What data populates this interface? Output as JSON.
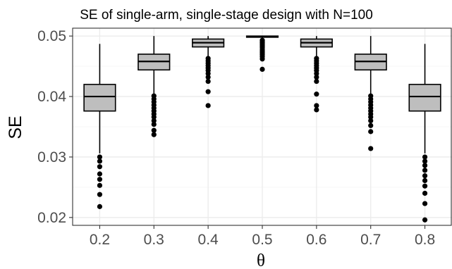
{
  "chart_data": {
    "type": "box",
    "title": "SE of single-arm, single-stage design with N=100",
    "xlabel": "θ",
    "ylabel": "SE",
    "categories": [
      "0.2",
      "0.3",
      "0.4",
      "0.5",
      "0.6",
      "0.7",
      "0.8"
    ],
    "ylim": [
      0.0187,
      0.0513
    ],
    "yticks": [
      0.02,
      0.03,
      0.04,
      0.05
    ],
    "ytick_labels": [
      "0.02",
      "0.03",
      "0.04",
      "0.05"
    ],
    "grid": true,
    "colors": {
      "box_fill": "#bebebe",
      "outline": "#000000",
      "grid_major": "#ebebeb",
      "grid_minor": "#f4f4f4"
    },
    "boxes": [
      {
        "category": "0.2",
        "whisker_low": 0.0306,
        "q1": 0.0376,
        "median": 0.04,
        "q3": 0.042,
        "whisker_high": 0.0487,
        "outliers": [
          0.03,
          0.0293,
          0.0284,
          0.0272,
          0.0263,
          0.0253,
          0.0238,
          0.0218
        ]
      },
      {
        "category": "0.3",
        "whisker_low": 0.0404,
        "q1": 0.0444,
        "median": 0.0458,
        "q3": 0.047,
        "whisker_high": 0.05,
        "outliers": [
          0.0401,
          0.0396,
          0.0391,
          0.0386,
          0.0381,
          0.0376,
          0.0371,
          0.0366,
          0.036,
          0.0354,
          0.0344,
          0.0337
        ]
      },
      {
        "category": "0.4",
        "whisker_low": 0.0466,
        "q1": 0.0482,
        "median": 0.0489,
        "q3": 0.0495,
        "whisker_high": 0.05,
        "outliers": [
          0.0463,
          0.0459,
          0.0455,
          0.0451,
          0.0447,
          0.0443,
          0.0438,
          0.0432,
          0.0425,
          0.0408,
          0.0385
        ]
      },
      {
        "category": "0.5",
        "whisker_low": 0.0495,
        "q1": 0.0498,
        "median": 0.0499,
        "q3": 0.05,
        "whisker_high": 0.05,
        "outliers": [
          0.0493,
          0.0491,
          0.0489,
          0.0487,
          0.0485,
          0.0483,
          0.0481,
          0.0478,
          0.0475,
          0.0472,
          0.0469,
          0.0466,
          0.0462,
          0.0445
        ]
      },
      {
        "category": "0.6",
        "whisker_low": 0.0466,
        "q1": 0.0482,
        "median": 0.0489,
        "q3": 0.0495,
        "whisker_high": 0.05,
        "outliers": [
          0.0463,
          0.0459,
          0.0455,
          0.0451,
          0.0447,
          0.0443,
          0.0438,
          0.0432,
          0.0425,
          0.0404,
          0.0385,
          0.0378
        ]
      },
      {
        "category": "0.7",
        "whisker_low": 0.0404,
        "q1": 0.0444,
        "median": 0.0458,
        "q3": 0.047,
        "whisker_high": 0.05,
        "outliers": [
          0.0401,
          0.0396,
          0.0391,
          0.0386,
          0.0381,
          0.0376,
          0.0371,
          0.0366,
          0.036,
          0.0352,
          0.0342,
          0.0314
        ]
      },
      {
        "category": "0.8",
        "whisker_low": 0.0306,
        "q1": 0.0376,
        "median": 0.04,
        "q3": 0.042,
        "whisker_high": 0.0487,
        "outliers": [
          0.03,
          0.0293,
          0.0286,
          0.0278,
          0.0269,
          0.0261,
          0.0252,
          0.024,
          0.0223,
          0.0196
        ]
      }
    ]
  }
}
